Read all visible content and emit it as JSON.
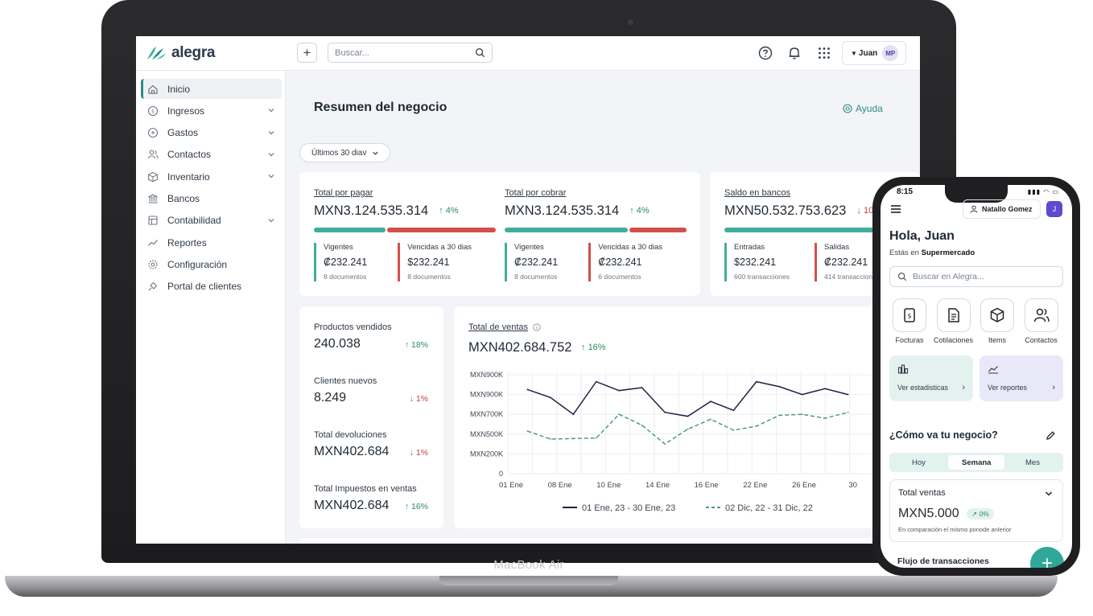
{
  "header": {
    "brand": "alegra",
    "search_placeholder": "Buscar...",
    "user_label": "Juan",
    "avatar_initials": "MP"
  },
  "sidebar": {
    "items": [
      {
        "label": "Inicio",
        "icon": "home-icon",
        "active": true,
        "expandable": false
      },
      {
        "label": "Ingresos",
        "icon": "income-icon",
        "expandable": true
      },
      {
        "label": "Gastos",
        "icon": "expenses-icon",
        "expandable": true
      },
      {
        "label": "Contactos",
        "icon": "contacts-icon",
        "expandable": true
      },
      {
        "label": "Inventario",
        "icon": "inventory-icon",
        "expandable": true
      },
      {
        "label": "Bancos",
        "icon": "bank-icon",
        "expandable": false
      },
      {
        "label": "Contabilidad",
        "icon": "accounting-icon",
        "expandable": true
      },
      {
        "label": "Reportes",
        "icon": "reports-icon",
        "expandable": false
      },
      {
        "label": "Configuración",
        "icon": "settings-icon",
        "expandable": false
      },
      {
        "label": "Portal de clientes",
        "icon": "portal-icon",
        "expandable": false
      }
    ]
  },
  "main": {
    "title": "Resumen del negocio",
    "help_label": "Ayuda",
    "date_range": "Últimos 30 diav",
    "kpis": [
      {
        "title": "Total por pagar",
        "value": "MXN3.124.535.314",
        "change": "4%",
        "direction": "up",
        "split": 0.4,
        "left": {
          "label": "Vigentes",
          "amount": "₡232.241",
          "docs": "8 documentos"
        },
        "right": {
          "label": "Vencidas a 30 dias",
          "amount": "$232.241",
          "docs": "8 documentos"
        }
      },
      {
        "title": "Total por cobrar",
        "value": "MXN3.124.535.314",
        "change": "4%",
        "direction": "up",
        "split": 0.68,
        "left": {
          "label": "Vigentes",
          "amount": "₡232.241",
          "docs": "8 documentos"
        },
        "right": {
          "label": "Vencidas a 30 dias",
          "amount": "₡232.241",
          "docs": "6 documentos"
        }
      },
      {
        "title": "Saldo en bancos",
        "value": "MXN50.532.753.623",
        "change": "10",
        "direction": "down",
        "split": 0.95,
        "left": {
          "label": "Entradas",
          "amount": "$232.241",
          "docs": "600 transacciones"
        },
        "right": {
          "label": "Salidas",
          "amount": "₡232.241",
          "docs": "414 transaccion"
        }
      }
    ],
    "stats": [
      {
        "label": "Productos vendidos",
        "value": "240.038",
        "change": "18%",
        "direction": "up"
      },
      {
        "label": "Clientes nuevos",
        "value": "8.249",
        "change": "1%",
        "direction": "down"
      },
      {
        "label": "Total devoluciones",
        "value": "MXN402.684",
        "change": "1%",
        "direction": "down"
      },
      {
        "label": "Total Impuestos en ventas",
        "value": "MXN402.684",
        "change": "16%",
        "direction": "up"
      }
    ]
  },
  "chart_data": {
    "type": "line",
    "title": "Total de ventas",
    "value": "MXN402.684.752",
    "change": "16%",
    "y_tick_labels": [
      "MXN900K",
      "MXN900K",
      "MXN700K",
      "MXN500K",
      "MXN200K",
      "0"
    ],
    "x_tick_labels": [
      "01 Ene",
      "08 Ene",
      "10 Ene",
      "14 Ene",
      "16 Ene",
      "22 Ene",
      "26 Ene",
      "30"
    ],
    "ylim": [
      0,
      1000
    ],
    "series": [
      {
        "name": "01 Ene, 23 - 30 Ene, 23",
        "style": "solid",
        "color": "#1d2340",
        "values": [
          850,
          770,
          600,
          930,
          840,
          870,
          620,
          580,
          730,
          640,
          930,
          880,
          800,
          860,
          800
        ]
      },
      {
        "name": "02 Dic, 22 - 31 Dic, 22",
        "style": "dashed",
        "color": "#4f9a82",
        "values": [
          430,
          350,
          355,
          360,
          600,
          490,
          300,
          450,
          550,
          440,
          480,
          590,
          600,
          560,
          620
        ]
      }
    ]
  },
  "phone": {
    "time": "8:15",
    "user_name": "Natallo Gomez",
    "avatar_initial": "J",
    "greeting": "Hola, Juan",
    "store_prefix": "Estás en",
    "store_name": "Supermercado",
    "search_placeholder": "Buscar en Alegra...",
    "quick_actions": [
      {
        "label": "Focturas",
        "icon": "invoice-icon"
      },
      {
        "label": "Cotilaciones",
        "icon": "quote-icon"
      },
      {
        "label": "Items",
        "icon": "box-icon"
      },
      {
        "label": "Contactos",
        "icon": "contacts-icon"
      }
    ],
    "tiles": [
      {
        "label": "Ver estadisticas",
        "icon": "stats-icon",
        "color": "#e3f2ef"
      },
      {
        "label": "Ver reportes",
        "icon": "reports-icon",
        "color": "#e9e8f8"
      }
    ],
    "business_question": "¿Cómo va tu negocio?",
    "periods": [
      "Hoy",
      "Semana",
      "Mes"
    ],
    "selected_period": "Semana",
    "sales_card": {
      "title": "Total ventas",
      "value": "MXN5.000",
      "change": "0%",
      "note": "En comparación el mismo ponode anlerior"
    },
    "flow_title": "Flujo de transacciones"
  },
  "device": {
    "label": "MacBook Air"
  }
}
